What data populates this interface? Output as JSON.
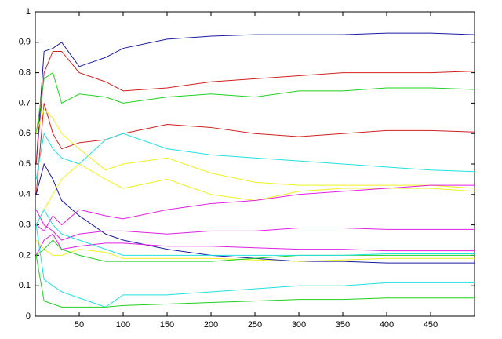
{
  "chart_data": {
    "type": "line",
    "x": [
      1,
      10,
      20,
      30,
      50,
      80,
      100,
      150,
      200,
      250,
      300,
      350,
      400,
      450,
      500
    ],
    "series": [
      {
        "color": "#1a1aa0",
        "values": [
          0.5,
          0.87,
          0.88,
          0.9,
          0.82,
          0.85,
          0.88,
          0.91,
          0.92,
          0.925,
          0.925,
          0.925,
          0.93,
          0.93,
          0.925
        ]
      },
      {
        "color": "#d02020",
        "values": [
          0.5,
          0.8,
          0.87,
          0.87,
          0.8,
          0.77,
          0.74,
          0.75,
          0.77,
          0.78,
          0.79,
          0.8,
          0.8,
          0.8,
          0.805
        ]
      },
      {
        "color": "#20d020",
        "values": [
          0.6,
          0.78,
          0.8,
          0.7,
          0.73,
          0.72,
          0.7,
          0.72,
          0.73,
          0.72,
          0.74,
          0.74,
          0.75,
          0.75,
          0.745
        ]
      },
      {
        "color": "#d02020",
        "values": [
          0.4,
          0.7,
          0.6,
          0.55,
          0.57,
          0.58,
          0.6,
          0.63,
          0.62,
          0.6,
          0.59,
          0.6,
          0.61,
          0.61,
          0.605
        ]
      },
      {
        "color": "#20e0e0",
        "values": [
          0.45,
          0.6,
          0.55,
          0.52,
          0.5,
          0.58,
          0.6,
          0.55,
          0.53,
          0.52,
          0.51,
          0.5,
          0.49,
          0.48,
          0.475
        ]
      },
      {
        "color": "#f0f020",
        "values": [
          0.6,
          0.68,
          0.65,
          0.6,
          0.55,
          0.48,
          0.5,
          0.52,
          0.47,
          0.44,
          0.43,
          0.43,
          0.43,
          0.43,
          0.42
        ]
      },
      {
        "color": "#f0f020",
        "values": [
          0.3,
          0.35,
          0.4,
          0.45,
          0.5,
          0.45,
          0.42,
          0.45,
          0.4,
          0.38,
          0.41,
          0.42,
          0.42,
          0.42,
          0.41
        ]
      },
      {
        "color": "#e020e0",
        "values": [
          0.3,
          0.28,
          0.33,
          0.3,
          0.35,
          0.33,
          0.32,
          0.35,
          0.37,
          0.38,
          0.4,
          0.41,
          0.42,
          0.43,
          0.43
        ]
      },
      {
        "color": "#e020e0",
        "values": [
          0.35,
          0.3,
          0.28,
          0.25,
          0.27,
          0.28,
          0.28,
          0.27,
          0.28,
          0.28,
          0.29,
          0.29,
          0.285,
          0.285,
          0.285
        ]
      },
      {
        "color": "#1a1aa0",
        "values": [
          0.4,
          0.5,
          0.45,
          0.38,
          0.33,
          0.27,
          0.25,
          0.22,
          0.2,
          0.19,
          0.18,
          0.18,
          0.175,
          0.175,
          0.175
        ]
      },
      {
        "color": "#e020e0",
        "values": [
          0.2,
          0.25,
          0.27,
          0.22,
          0.23,
          0.24,
          0.24,
          0.23,
          0.23,
          0.225,
          0.22,
          0.22,
          0.215,
          0.215,
          0.215
        ]
      },
      {
        "color": "#f0f020",
        "values": [
          0.25,
          0.22,
          0.2,
          0.2,
          0.22,
          0.21,
          0.19,
          0.19,
          0.19,
          0.185,
          0.18,
          0.185,
          0.19,
          0.19,
          0.19
        ]
      },
      {
        "color": "#20d020",
        "values": [
          0.2,
          0.22,
          0.25,
          0.22,
          0.2,
          0.18,
          0.18,
          0.18,
          0.18,
          0.19,
          0.2,
          0.2,
          0.2,
          0.2,
          0.2
        ]
      },
      {
        "color": "#20e0e0",
        "values": [
          0.3,
          0.12,
          0.1,
          0.08,
          0.06,
          0.03,
          0.07,
          0.07,
          0.08,
          0.09,
          0.1,
          0.1,
          0.11,
          0.11,
          0.11
        ]
      },
      {
        "color": "#20d020",
        "values": [
          0.2,
          0.05,
          0.04,
          0.03,
          0.03,
          0.03,
          0.035,
          0.04,
          0.045,
          0.05,
          0.055,
          0.055,
          0.06,
          0.06,
          0.06
        ]
      },
      {
        "color": "#20e0e0",
        "values": [
          0.3,
          0.35,
          0.3,
          0.27,
          0.25,
          0.22,
          0.2,
          0.2,
          0.2,
          0.2,
          0.2,
          0.2,
          0.205,
          0.205,
          0.205
        ]
      }
    ],
    "xlim": [
      0,
      500
    ],
    "xticks": [
      50,
      100,
      150,
      200,
      250,
      300,
      350,
      400,
      450
    ],
    "ylim": [
      0,
      1
    ],
    "yticks": [
      0,
      0.1,
      0.2,
      0.3,
      0.4,
      0.5,
      0.6,
      0.7,
      0.8,
      0.9,
      1
    ],
    "grid": false
  }
}
